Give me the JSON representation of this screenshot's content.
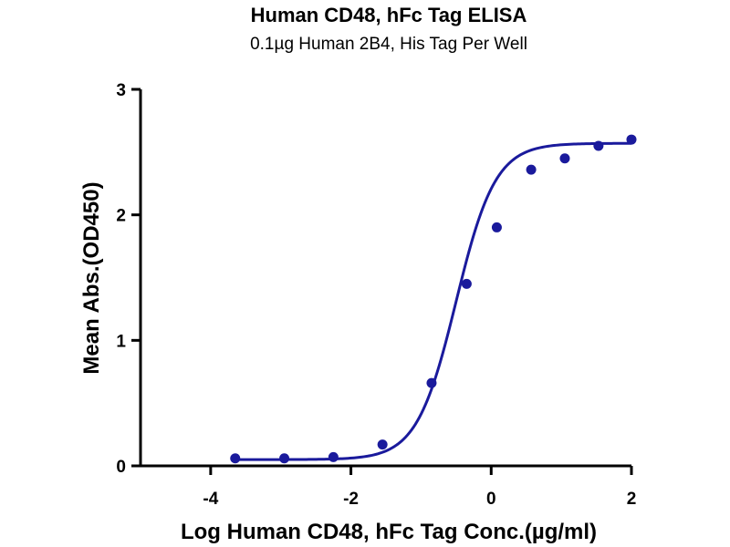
{
  "chart_data": {
    "type": "scatter",
    "title": "Human CD48, hFc Tag ELISA",
    "subtitle": "0.1µg Human 2B4, His Tag Per Well",
    "xlabel": "Log Human CD48, hFc Tag Conc.(µg/ml)",
    "ylabel": "Mean Abs.(OD450)",
    "xlim": [
      -5,
      2
    ],
    "ylim": [
      0,
      3
    ],
    "xticks": [
      -4,
      -2,
      0,
      2
    ],
    "yticks": [
      0,
      1,
      2,
      3
    ],
    "grid": false,
    "points": [
      {
        "x": -3.65,
        "y": 0.06
      },
      {
        "x": -2.95,
        "y": 0.06
      },
      {
        "x": -2.25,
        "y": 0.07
      },
      {
        "x": -1.55,
        "y": 0.17
      },
      {
        "x": -0.85,
        "y": 0.66
      },
      {
        "x": -0.35,
        "y": 1.45
      },
      {
        "x": 0.08,
        "y": 1.9
      },
      {
        "x": 0.57,
        "y": 2.36
      },
      {
        "x": 1.05,
        "y": 2.45
      },
      {
        "x": 1.53,
        "y": 2.55
      },
      {
        "x": 2.0,
        "y": 2.6
      }
    ],
    "fit_curve": {
      "model": "4PL",
      "bottom": 0.05,
      "top": 2.57,
      "log_ec50": -0.5,
      "hill_slope": 1.55
    },
    "colors": {
      "series": "#1a1a9c",
      "axis": "#000000"
    }
  }
}
